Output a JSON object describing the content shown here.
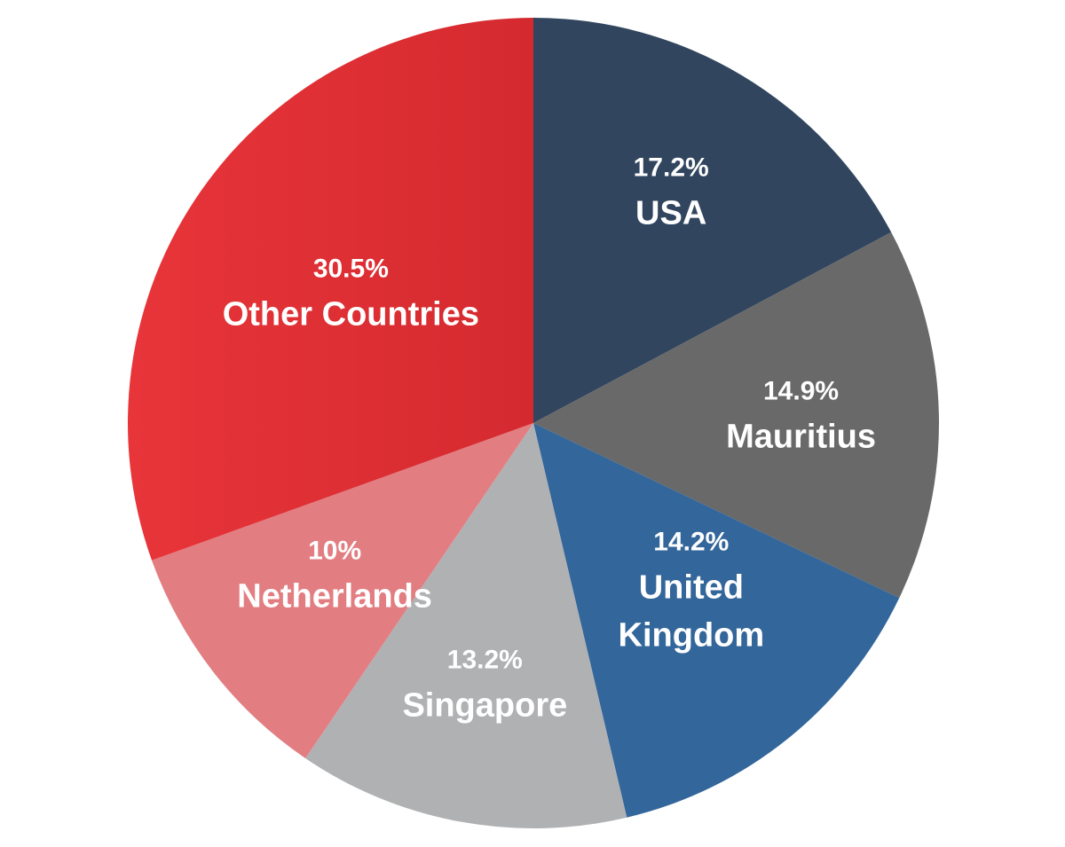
{
  "chart_data": {
    "type": "pie",
    "start_angle_deg": 0,
    "direction": "clockwise",
    "slices": [
      {
        "label": "USA",
        "value": 17.2,
        "value_label": "17.2%",
        "color": "#31465E"
      },
      {
        "label": "Mauritius",
        "value": 14.9,
        "value_label": "14.9%",
        "color": "#696969"
      },
      {
        "label": "United Kingdom",
        "value": 14.2,
        "value_label": "14.2%",
        "color": "#33669A"
      },
      {
        "label": "Singapore",
        "value": 13.2,
        "value_label": "13.2%",
        "color": "#B0B1B3"
      },
      {
        "label": "Netherlands",
        "value": 10,
        "value_label": "10%",
        "color": "#E27E82"
      },
      {
        "label": "Other Countries",
        "value": 30.5,
        "value_label": "30.5%",
        "color": "#DE2E32"
      }
    ],
    "legend": "none",
    "text_color": "#FFFFFF"
  }
}
